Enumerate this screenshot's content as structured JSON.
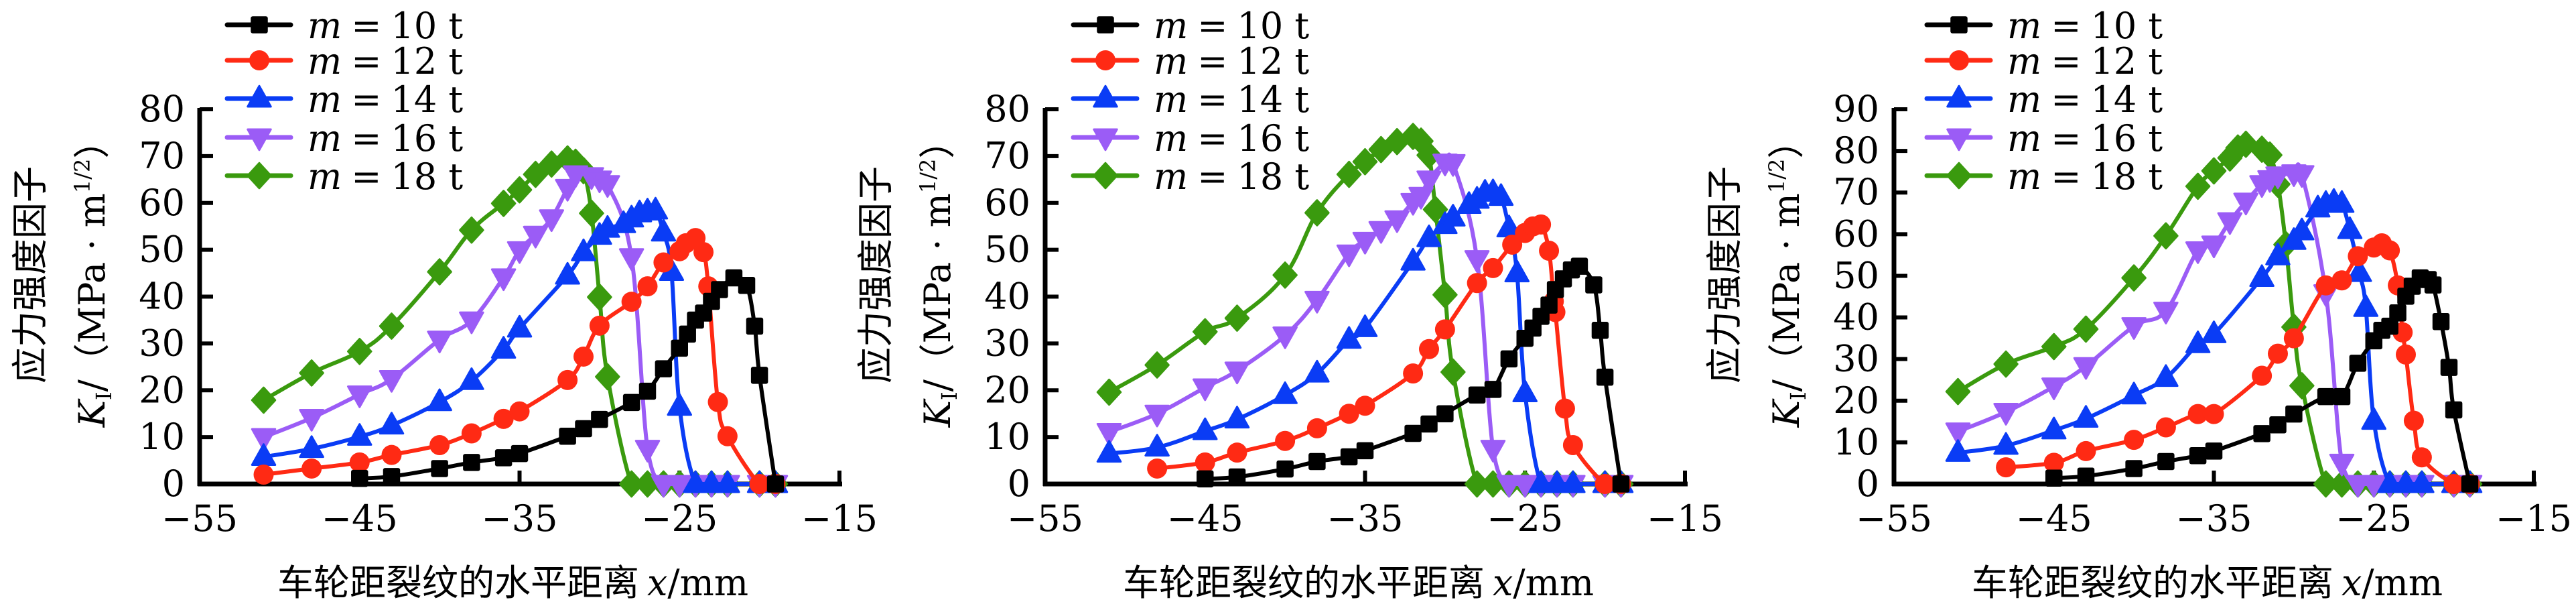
{
  "chart_data": [
    {
      "type": "line",
      "xlabel": "车轮距裂纹的水平距离",
      "xlabel_var": "x",
      "xlabel_unit": "/mm",
      "ylabel_line1": "应力强度因子",
      "ylabel_var": "K",
      "ylabel_sub": "I",
      "ylabel_unit_pre": "/（MPa · m",
      "ylabel_unit_sup": "1/2",
      "ylabel_unit_post": "）",
      "xlim": [
        -55,
        -15
      ],
      "ylim": [
        0,
        80
      ],
      "xticks": [
        "−55",
        "−45",
        "−35",
        "−25",
        "−15"
      ],
      "xtick_values": [
        -55,
        -45,
        -35,
        -25,
        -15
      ],
      "yticks": [
        "0",
        "10",
        "20",
        "30",
        "40",
        "50",
        "60",
        "70",
        "80"
      ],
      "ytick_values": [
        0,
        10,
        20,
        30,
        40,
        50,
        60,
        70,
        80
      ],
      "grid": false,
      "legend_position": "top-left",
      "series": [
        {
          "name": "10 t",
          "label_var": "m",
          "label_eq": "=",
          "color": "#000000",
          "marker": "square",
          "x": [
            -45,
            -43,
            -40,
            -38,
            -36,
            -35,
            -32,
            -31,
            -30,
            -28,
            -27,
            -26,
            -25,
            -24.5,
            -24,
            -23.5,
            -23,
            -22.5,
            -21.6,
            -20.8,
            -20.3,
            -20,
            -19
          ],
          "y": [
            1.2,
            1.6,
            3.3,
            4.6,
            5.6,
            6.5,
            10.2,
            11.8,
            13.8,
            17.4,
            19.8,
            24.6,
            29,
            32,
            35,
            36.5,
            39,
            41.5,
            44,
            42.4,
            33.7,
            23.2,
            0
          ]
        },
        {
          "name": "12 t",
          "label_var": "m",
          "label_eq": "=",
          "color": "#ff2a14",
          "marker": "circle",
          "x": [
            -51,
            -48,
            -45,
            -43,
            -40,
            -38,
            -36,
            -35,
            -32,
            -31,
            -30,
            -28,
            -27,
            -26,
            -25,
            -24.6,
            -24,
            -23.5,
            -23.2,
            -22.6,
            -22,
            -20,
            -19
          ],
          "y": [
            2,
            3.3,
            4.6,
            6.2,
            8.3,
            10.8,
            13.9,
            15.5,
            22.2,
            27.2,
            33.8,
            38.9,
            42.2,
            47.3,
            49.7,
            51.4,
            52.5,
            49.5,
            42.2,
            17.5,
            10.2,
            0,
            0
          ]
        },
        {
          "name": "14 t",
          "label_var": "m",
          "label_eq": "=",
          "color": "#0a3cf5",
          "marker": "triangle-up",
          "x": [
            -51,
            -48,
            -45,
            -43,
            -40,
            -38,
            -36,
            -35,
            -32,
            -31,
            -30,
            -29.5,
            -28.5,
            -28,
            -27.5,
            -27,
            -26.5,
            -26,
            -25.5,
            -25,
            -24,
            -23,
            -22,
            -20,
            -19
          ],
          "y": [
            5.8,
            7.5,
            10.1,
            12.5,
            17.5,
            22,
            28.7,
            33.2,
            44.5,
            49.5,
            53,
            54.5,
            55.5,
            56.7,
            57.8,
            58.2,
            58.4,
            53.7,
            45.3,
            16.5,
            0,
            0,
            0,
            0,
            0
          ]
        },
        {
          "name": "16 t",
          "label_var": "m",
          "label_eq": "=",
          "color": "#9b5cf6",
          "marker": "triangle-down",
          "x": [
            -51,
            -48,
            -45,
            -43,
            -40,
            -38,
            -36,
            -35,
            -34,
            -33,
            -32,
            -31.5,
            -30.5,
            -30,
            -29.5,
            -28,
            -27,
            -26,
            -25,
            -24,
            -23,
            -22,
            -20,
            -19
          ],
          "y": [
            10,
            14.1,
            19.1,
            22.4,
            30.8,
            34.9,
            44.1,
            49.9,
            53.2,
            56.7,
            63.2,
            66.1,
            65.7,
            65,
            64,
            48.4,
            7.5,
            0,
            0,
            0,
            0,
            0,
            0,
            0
          ]
        },
        {
          "name": "18 t",
          "label_var": "m",
          "label_eq": "=",
          "color": "#3a9a0e",
          "marker": "diamond",
          "x": [
            -51,
            -48,
            -45,
            -43,
            -40,
            -38,
            -36,
            -35,
            -34,
            -33,
            -32,
            -31.5,
            -31,
            -30.5,
            -30,
            -29.5,
            -28,
            -27,
            -26,
            -25,
            -24,
            -23,
            -22,
            -20,
            -19
          ],
          "y": [
            17.9,
            23.7,
            28.3,
            33.7,
            45.3,
            54.2,
            59.9,
            62.8,
            66.1,
            68.3,
            69.4,
            68.7,
            66.9,
            57.8,
            39.9,
            22.9,
            0,
            0,
            0,
            0,
            0,
            0,
            0,
            0,
            0
          ]
        }
      ]
    },
    {
      "type": "line",
      "xlabel": "车轮距裂纹的水平距离",
      "xlabel_var": "x",
      "xlabel_unit": "/mm",
      "ylabel_line1": "应力强度因子",
      "ylabel_var": "K",
      "ylabel_sub": "I",
      "ylabel_unit_pre": "/（MPa · m",
      "ylabel_unit_sup": "1/2",
      "ylabel_unit_post": "）",
      "xlim": [
        -55,
        -15
      ],
      "ylim": [
        0,
        80
      ],
      "xticks": [
        "−55",
        "−45",
        "−35",
        "−25",
        "−15"
      ],
      "xtick_values": [
        -55,
        -45,
        -35,
        -25,
        -15
      ],
      "yticks": [
        "0",
        "10",
        "20",
        "30",
        "40",
        "50",
        "60",
        "70",
        "80"
      ],
      "ytick_values": [
        0,
        10,
        20,
        30,
        40,
        50,
        60,
        70,
        80
      ],
      "grid": false,
      "legend_position": "top-left",
      "series": [
        {
          "name": "10 t",
          "label_var": "m",
          "label_eq": "=",
          "color": "#000000",
          "marker": "square",
          "x": [
            -45,
            -43,
            -40,
            -38,
            -36,
            -35,
            -32,
            -31,
            -30,
            -28,
            -27,
            -26,
            -25,
            -24.5,
            -24,
            -23.5,
            -23.1,
            -22.6,
            -22.1,
            -21.6,
            -20.7,
            -20.3,
            -20,
            -19
          ],
          "y": [
            1.1,
            1.5,
            3.2,
            4.8,
            5.8,
            7.1,
            10.8,
            12.8,
            15,
            19,
            20.2,
            26.7,
            31.1,
            33.3,
            35.8,
            38.2,
            41.5,
            43.8,
            45.7,
            46.5,
            42.5,
            32.8,
            22.8,
            0
          ]
        },
        {
          "name": "12 t",
          "label_var": "m",
          "label_eq": "=",
          "color": "#ff2a14",
          "marker": "circle",
          "x": [
            -48,
            -45,
            -43,
            -40,
            -38,
            -36,
            -35,
            -32,
            -31,
            -30,
            -28,
            -27,
            -25.8,
            -25,
            -24.5,
            -24,
            -23.5,
            -23.2,
            -23.1,
            -22.5,
            -22,
            -20,
            -19
          ],
          "y": [
            3.3,
            4.6,
            6.7,
            9.2,
            11.9,
            15,
            16.7,
            23.6,
            28.8,
            33,
            42.9,
            46.1,
            51.1,
            53.6,
            55,
            55.4,
            49.8,
            39,
            36.7,
            16.1,
            8.3,
            0,
            0
          ]
        },
        {
          "name": "14 t",
          "label_var": "m",
          "label_eq": "=",
          "color": "#0a3cf5",
          "marker": "triangle-up",
          "x": [
            -51,
            -48,
            -45,
            -43,
            -40,
            -38,
            -36,
            -35,
            -32,
            -31,
            -30,
            -29.5,
            -28.5,
            -28,
            -27.5,
            -27,
            -26.5,
            -26,
            -25.5,
            -25,
            -24,
            -23,
            -22,
            -20,
            -19
          ],
          "y": [
            6.5,
            7.8,
            11.3,
            13.8,
            19,
            23.6,
            30.8,
            33.3,
            47.5,
            52.5,
            55.3,
            56.9,
            59.6,
            60.7,
            62.2,
            62.3,
            61.3,
            54.6,
            45,
            19.4,
            0,
            0,
            0,
            0,
            0
          ]
        },
        {
          "name": "16 t",
          "label_var": "m",
          "label_eq": "=",
          "color": "#9b5cf6",
          "marker": "triangle-down",
          "x": [
            -51,
            -48,
            -45,
            -43,
            -40,
            -38,
            -36,
            -35,
            -34,
            -33,
            -32,
            -31.5,
            -31,
            -30,
            -29.5,
            -28,
            -27,
            -26,
            -25,
            -24,
            -23,
            -22,
            -20,
            -19
          ],
          "y": [
            11.1,
            15,
            20.6,
            24.2,
            31.7,
            39.3,
            49.2,
            51.9,
            54.2,
            56.5,
            60.2,
            61.5,
            65,
            68.6,
            68.5,
            48,
            7.5,
            0,
            0,
            0,
            0,
            0,
            0,
            0
          ]
        },
        {
          "name": "18 t",
          "label_var": "m",
          "label_eq": "=",
          "color": "#3a9a0e",
          "marker": "diamond",
          "x": [
            -51,
            -48,
            -45,
            -43,
            -40,
            -38,
            -36,
            -35,
            -34,
            -33,
            -32,
            -31.5,
            -31,
            -30.6,
            -30,
            -29.5,
            -28,
            -27,
            -26,
            -25,
            -24,
            -23,
            -22,
            -20,
            -19
          ],
          "y": [
            19.6,
            25.4,
            32.5,
            35.4,
            44.6,
            57.9,
            66.1,
            68.8,
            71.4,
            73.1,
            74.2,
            73.2,
            70.2,
            58.6,
            40.4,
            23.9,
            0,
            0,
            0,
            0,
            0,
            0,
            0,
            0,
            0
          ]
        }
      ]
    },
    {
      "type": "line",
      "xlabel": "车轮距裂纹的水平距离",
      "xlabel_var": "x",
      "xlabel_unit": "/mm",
      "ylabel_line1": "应力强度因子",
      "ylabel_var": "K",
      "ylabel_sub": "I",
      "ylabel_unit_pre": "/（MPa · m",
      "ylabel_unit_sup": "1/2",
      "ylabel_unit_post": "）",
      "xlim": [
        -55,
        -15
      ],
      "ylim": [
        0,
        90
      ],
      "xticks": [
        "−55",
        "−45",
        "−35",
        "−25",
        "−15"
      ],
      "xtick_values": [
        -55,
        -45,
        -35,
        -25,
        -15
      ],
      "yticks": [
        "0",
        "10",
        "20",
        "30",
        "40",
        "50",
        "60",
        "70",
        "80",
        "90"
      ],
      "ytick_values": [
        0,
        10,
        20,
        30,
        40,
        50,
        60,
        70,
        80,
        90
      ],
      "grid": false,
      "legend_position": "top-left",
      "series": [
        {
          "name": "10 t",
          "label_var": "m",
          "label_eq": "=",
          "color": "#000000",
          "marker": "square",
          "x": [
            -45,
            -43,
            -40,
            -38,
            -36,
            -35,
            -32,
            -31,
            -30,
            -28,
            -27,
            -26,
            -25,
            -24.5,
            -24,
            -23.5,
            -23,
            -22.6,
            -22.1,
            -21.6,
            -21.3,
            -20.8,
            -20.3,
            -20,
            -19
          ],
          "y": [
            1.4,
            1.9,
            3.7,
            5.4,
            6.8,
            7.9,
            12.1,
            14.2,
            16.8,
            21,
            21,
            29,
            34.4,
            36.9,
            37.9,
            41.1,
            45.1,
            47.5,
            49.5,
            49.1,
            47.8,
            39,
            28,
            17.8,
            0
          ]
        },
        {
          "name": "12 t",
          "label_var": "m",
          "label_eq": "=",
          "color": "#ff2a14",
          "marker": "circle",
          "x": [
            -48,
            -45,
            -43,
            -40,
            -38,
            -36,
            -35,
            -32,
            -31,
            -30,
            -28,
            -27,
            -26,
            -25,
            -24.5,
            -24,
            -23.5,
            -23.2,
            -23,
            -22.5,
            -22,
            -20,
            -19
          ],
          "y": [
            4,
            5.1,
            7.9,
            10.6,
            13.6,
            16.8,
            16.8,
            26,
            31.3,
            35,
            47.7,
            48.9,
            54.7,
            56.8,
            57.8,
            56.1,
            47.7,
            36.4,
            31.1,
            15.2,
            6.4,
            0,
            0
          ]
        },
        {
          "name": "14 t",
          "label_var": "m",
          "label_eq": "=",
          "color": "#0a3cf5",
          "marker": "triangle-up",
          "x": [
            -51,
            -48,
            -45,
            -43,
            -40,
            -38,
            -36,
            -35,
            -32,
            -31,
            -30,
            -29.5,
            -28.5,
            -28,
            -27.5,
            -27,
            -26.5,
            -25.9,
            -25.5,
            -25,
            -24,
            -23,
            -22,
            -20,
            -19
          ],
          "y": [
            7.5,
            9.2,
            12.9,
            15.7,
            21.3,
            25.5,
            33.6,
            36,
            49.5,
            54.7,
            58.4,
            60.7,
            66.2,
            67.3,
            67.8,
            67.3,
            61,
            50.7,
            42.3,
            15.2,
            0,
            0,
            0,
            0,
            0
          ]
        },
        {
          "name": "16 t",
          "label_var": "m",
          "label_eq": "=",
          "color": "#9b5cf6",
          "marker": "triangle-down",
          "x": [
            -51,
            -48,
            -45,
            -43,
            -40,
            -38,
            -36,
            -35,
            -34,
            -33,
            -32,
            -31.5,
            -31,
            -30,
            -29.5,
            -28,
            -27,
            -26,
            -25,
            -24,
            -23,
            -22,
            -20,
            -19
          ],
          "y": [
            12.6,
            17.3,
            23.4,
            28.3,
            37.9,
            41.6,
            56.1,
            57.5,
            63.1,
            67.8,
            72,
            73.2,
            74.1,
            74.6,
            74.4,
            45.8,
            5.1,
            0,
            0,
            0,
            0,
            0,
            0,
            0
          ]
        },
        {
          "name": "18 t",
          "label_var": "m",
          "label_eq": "=",
          "color": "#3a9a0e",
          "marker": "diamond",
          "x": [
            -51,
            -48,
            -45,
            -43,
            -40,
            -38,
            -36,
            -35,
            -34,
            -33.5,
            -33,
            -32,
            -31.5,
            -31,
            -30.5,
            -30,
            -29.5,
            -28,
            -27,
            -26,
            -25,
            -24,
            -23,
            -22,
            -20,
            -19
          ],
          "y": [
            22.2,
            28.8,
            33,
            37.2,
            49.5,
            59.6,
            71.5,
            75.2,
            78.3,
            80.7,
            81.6,
            80.4,
            79,
            72,
            57.5,
            37.7,
            23.6,
            0,
            0,
            0,
            0,
            0,
            0,
            0,
            0,
            0
          ]
        }
      ]
    }
  ]
}
